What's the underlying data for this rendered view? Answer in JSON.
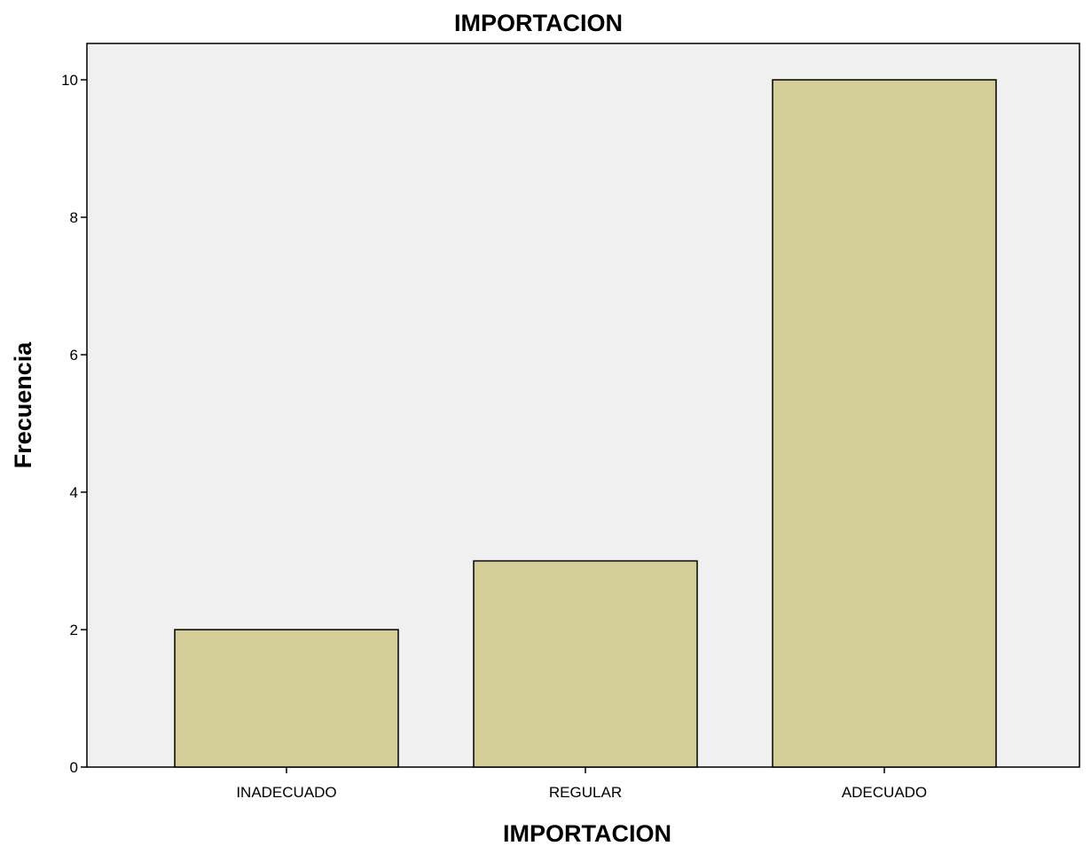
{
  "chart_data": {
    "type": "bar",
    "title": "IMPORTACION",
    "xlabel": "IMPORTACION",
    "ylabel": "Frecuencia",
    "categories": [
      "INADECUADO",
      "REGULAR",
      "ADECUADO"
    ],
    "values": [
      2,
      3,
      10
    ],
    "ylim": [
      0,
      10.5
    ],
    "yticks": [
      0,
      2,
      4,
      6,
      8,
      10
    ],
    "grid": false,
    "colors": {
      "bar_fill": "#d3cd98",
      "bar_stroke": "#000000",
      "plot_background": "#f0f0f0"
    }
  }
}
